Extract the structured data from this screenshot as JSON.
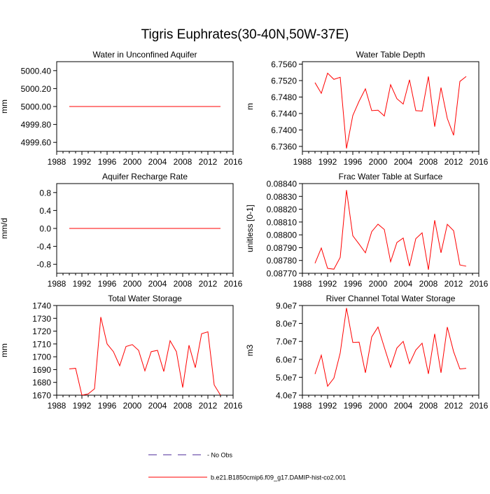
{
  "title": "Tigris Euphrates(30-40N,50W-37E)",
  "colors": {
    "series": "#ff0000",
    "obs": "#4b2a9a",
    "axis": "#000000"
  },
  "legend": {
    "obs_label": "- No Obs",
    "model_label": "b.e21.B1850cmip6.f09_g17.DAMIP-hist-co2.001"
  },
  "chart_data": [
    {
      "type": "line",
      "title": "Water in Unconfined Aquifer",
      "ylabel": "mm",
      "xlim": [
        1988,
        2016
      ],
      "ylim": [
        4999.5,
        5000.5
      ],
      "xticks": [
        "1988",
        "1992",
        "1996",
        "2000",
        "2004",
        "2008",
        "2012",
        "2016"
      ],
      "yticks": [
        "4999.60",
        "4999.80",
        "5000.00",
        "5000.20",
        "5000.40"
      ],
      "ytick_values": [
        4999.6,
        4999.8,
        5000.0,
        5000.2,
        5000.4
      ],
      "x": [
        1990,
        1991,
        1992,
        1993,
        1994,
        1995,
        1996,
        1997,
        1998,
        1999,
        2000,
        2001,
        2002,
        2003,
        2004,
        2005,
        2006,
        2007,
        2008,
        2009,
        2010,
        2011,
        2012,
        2013,
        2014
      ],
      "values": [
        5000,
        5000,
        5000,
        5000,
        5000,
        5000,
        5000,
        5000,
        5000,
        5000,
        5000,
        5000,
        5000,
        5000,
        5000,
        5000,
        5000,
        5000,
        5000,
        5000,
        5000,
        5000,
        5000,
        5000,
        5000
      ]
    },
    {
      "type": "line",
      "title": "Water Table Depth",
      "ylabel": "m",
      "xlim": [
        1988,
        2016
      ],
      "ylim": [
        6.7348,
        6.7566
      ],
      "xticks": [
        "1988",
        "1992",
        "1996",
        "2000",
        "2004",
        "2008",
        "2012",
        "2016"
      ],
      "yticks": [
        "6.7360",
        "6.7400",
        "6.7440",
        "6.7480",
        "6.7520",
        "6.7560"
      ],
      "ytick_values": [
        6.736,
        6.74,
        6.744,
        6.748,
        6.752,
        6.756
      ],
      "x": [
        1990,
        1991,
        1992,
        1993,
        1994,
        1995,
        1996,
        1997,
        1998,
        1999,
        2000,
        2001,
        2002,
        2003,
        2004,
        2005,
        2006,
        2007,
        2008,
        2009,
        2010,
        2011,
        2012,
        2013,
        2014
      ],
      "values": [
        6.7515,
        6.7489,
        6.7538,
        6.7523,
        6.7528,
        6.7355,
        6.7435,
        6.747,
        6.75,
        6.7447,
        6.7448,
        6.7434,
        6.751,
        6.7476,
        6.7463,
        6.7522,
        6.7447,
        6.7446,
        6.753,
        6.7408,
        6.7503,
        6.7428,
        6.7387,
        6.7518,
        6.753
      ]
    },
    {
      "type": "line",
      "title": "Aquifer Recharge Rate",
      "ylabel": "mm/d",
      "xlim": [
        1988,
        2016
      ],
      "ylim": [
        -1.0,
        1.0
      ],
      "xticks": [
        "1988",
        "1992",
        "1996",
        "2000",
        "2004",
        "2008",
        "2012",
        "2016"
      ],
      "yticks": [
        "-0.8",
        "-0.4",
        "0.0",
        "0.4",
        "0.8"
      ],
      "ytick_values": [
        -0.8,
        -0.4,
        0.0,
        0.4,
        0.8
      ],
      "x": [
        1990,
        1991,
        1992,
        1993,
        1994,
        1995,
        1996,
        1997,
        1998,
        1999,
        2000,
        2001,
        2002,
        2003,
        2004,
        2005,
        2006,
        2007,
        2008,
        2009,
        2010,
        2011,
        2012,
        2013,
        2014
      ],
      "values": [
        0,
        0,
        0,
        0,
        0,
        0,
        0,
        0,
        0,
        0,
        0,
        0,
        0,
        0,
        0,
        0,
        0,
        0,
        0,
        0,
        0,
        0,
        0,
        0,
        0
      ]
    },
    {
      "type": "line",
      "title": "Frac Water Table at Surface",
      "ylabel": "unitless [0-1]",
      "xlim": [
        1988,
        2016
      ],
      "ylim": [
        0.0877,
        0.0884
      ],
      "xticks": [
        "1988",
        "1992",
        "1996",
        "2000",
        "2004",
        "2008",
        "2012",
        "2016"
      ],
      "yticks": [
        "0.08770",
        "0.08780",
        "0.08790",
        "0.08800",
        "0.08810",
        "0.08820",
        "0.08830",
        "0.08840"
      ],
      "ytick_values": [
        0.0877,
        0.0878,
        0.0879,
        0.088,
        0.0881,
        0.0882,
        0.0883,
        0.0884
      ],
      "x": [
        1990,
        1991,
        1992,
        1993,
        1994,
        1995,
        1996,
        1997,
        1998,
        1999,
        2000,
        2001,
        2002,
        2003,
        2004,
        2005,
        2006,
        2007,
        2008,
        2009,
        2010,
        2011,
        2012,
        2013,
        2014
      ],
      "values": [
        0.087778,
        0.087897,
        0.087738,
        0.087732,
        0.087824,
        0.088349,
        0.087993,
        0.087928,
        0.08786,
        0.088025,
        0.088083,
        0.088042,
        0.08779,
        0.08794,
        0.087975,
        0.087756,
        0.08797,
        0.088016,
        0.087728,
        0.088114,
        0.08786,
        0.088082,
        0.088032,
        0.087765,
        0.087755
      ]
    },
    {
      "type": "line",
      "title": "Total Water Storage",
      "ylabel": "mm",
      "xlim": [
        1988,
        2016
      ],
      "ylim": [
        1670,
        1740
      ],
      "xticks": [
        "1988",
        "1992",
        "1996",
        "2000",
        "2004",
        "2008",
        "2012",
        "2016"
      ],
      "yticks": [
        "1670",
        "1680",
        "1690",
        "1700",
        "1710",
        "1720",
        "1730",
        "1740"
      ],
      "ytick_values": [
        1670,
        1680,
        1690,
        1700,
        1710,
        1720,
        1730,
        1740
      ],
      "x": [
        1990,
        1991,
        1992,
        1993,
        1994,
        1995,
        1996,
        1997,
        1998,
        1999,
        2000,
        2001,
        2002,
        2003,
        2004,
        2005,
        2006,
        2007,
        2008,
        2009,
        2010,
        2011,
        2012,
        2013,
        2014
      ],
      "values": [
        1690.5,
        1691,
        1670,
        1671,
        1675,
        1731,
        1710,
        1704,
        1693,
        1708,
        1709.5,
        1705,
        1689,
        1704,
        1705,
        1688.5,
        1712.5,
        1704,
        1676,
        1709,
        1691.5,
        1718,
        1719.5,
        1678,
        1670
      ]
    },
    {
      "type": "line",
      "title": "River Channel Total Water Storage",
      "ylabel": "m3",
      "xlim": [
        1988,
        2016
      ],
      "ylim": [
        40000000,
        90000000
      ],
      "xticks": [
        "1988",
        "1992",
        "1996",
        "2000",
        "2004",
        "2008",
        "2012",
        "2016"
      ],
      "yticks": [
        "4.0e7",
        "5.0e7",
        "6.0e7",
        "7.0e7",
        "8.0e7",
        "9.0e7"
      ],
      "ytick_values": [
        40000000,
        50000000,
        60000000,
        70000000,
        80000000,
        90000000
      ],
      "x": [
        1990,
        1991,
        1992,
        1993,
        1994,
        1995,
        1996,
        1997,
        1998,
        1999,
        2000,
        2001,
        2002,
        2003,
        2004,
        2005,
        2006,
        2007,
        2008,
        2009,
        2010,
        2011,
        2012,
        2013,
        2014
      ],
      "values": [
        51800000,
        62300000,
        45000000,
        49500000,
        63500000,
        88600000,
        69400000,
        69600000,
        52500000,
        72500000,
        78000000,
        66700000,
        55600000,
        66300000,
        70000000,
        57600000,
        65200000,
        69000000,
        51900000,
        74200000,
        52500000,
        78000000,
        64300000,
        54600000,
        55000000
      ]
    }
  ]
}
